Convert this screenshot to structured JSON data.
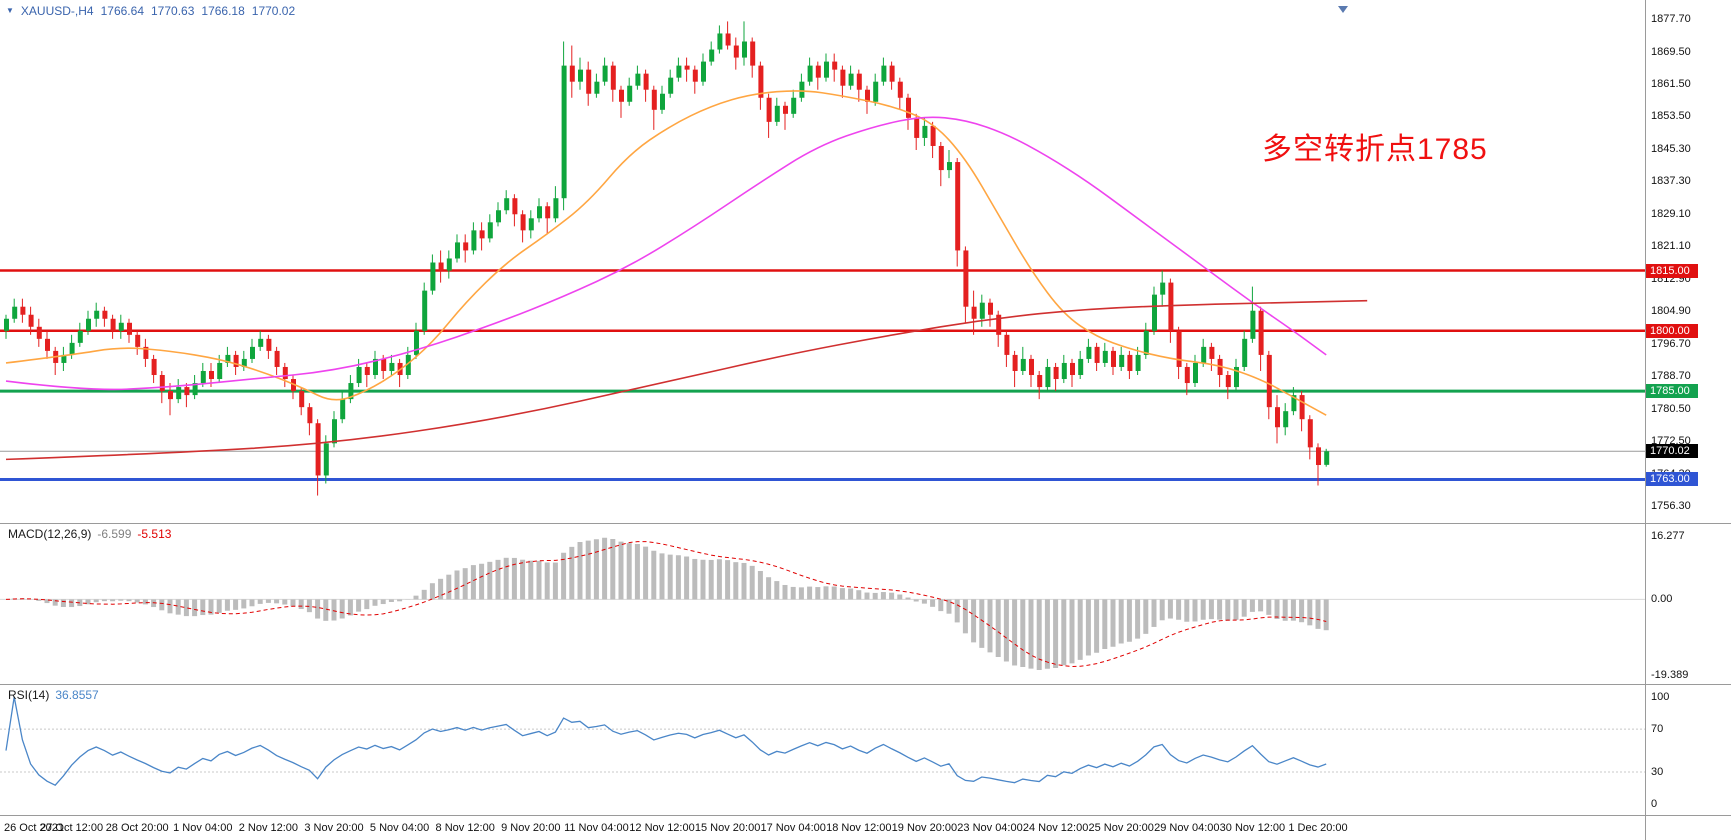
{
  "symbol_bar": {
    "dropdown_icon": "▼",
    "symbol": "XAUUSD-,H4",
    "open": "1766.64",
    "high": "1770.63",
    "low": "1766.18",
    "close": "1770.02",
    "color": "#3a64ad"
  },
  "annotation": {
    "text": "多空转折点1785",
    "color": "#f01010"
  },
  "colors": {
    "up": "#0fa53c",
    "down": "#e42020",
    "ma_fast": "#ffa642",
    "ma_mid": "#ee44ee",
    "ma_slow": "#d03030",
    "macd_hist": "#bcbcbc",
    "macd_signal": "#e00000",
    "rsi_line": "#4a86c8",
    "level_dotted": "#c8c8c8",
    "separator": "#9a9a9a",
    "bid_line": "#9a9a9a",
    "bid_badge_bg": "#000000"
  },
  "price_axis": {
    "labels": [
      "1877.70",
      "1869.50",
      "1861.50",
      "1853.50",
      "1845.30",
      "1837.30",
      "1829.10",
      "1821.10",
      "1812.90",
      "1804.90",
      "1796.70",
      "1788.70",
      "1780.50",
      "1772.50",
      "1764.30",
      "1756.30"
    ],
    "values": [
      1877.7,
      1869.5,
      1861.5,
      1853.5,
      1845.3,
      1837.3,
      1829.1,
      1821.1,
      1812.9,
      1804.9,
      1796.7,
      1788.7,
      1780.5,
      1772.5,
      1764.3,
      1756.3
    ]
  },
  "levels": [
    {
      "name": "resistance-1815",
      "price": 1815.0,
      "label": "1815.00",
      "color": "#e01010",
      "thickness": 2.5
    },
    {
      "name": "resistance-1800",
      "price": 1800.0,
      "label": "1800.00",
      "color": "#e01010",
      "thickness": 2.5
    },
    {
      "name": "pivot-1785",
      "price": 1785.0,
      "label": "1785.00",
      "color": "#13a24f",
      "thickness": 3
    },
    {
      "name": "support-1763",
      "price": 1763.0,
      "label": "1763.00",
      "color": "#2f55d4",
      "thickness": 3
    }
  ],
  "bid": {
    "price": 1770.02,
    "label": "1770.02"
  },
  "chart_data": {
    "type": "candlestick",
    "symbol": "XAUUSD-",
    "timeframe": "H4",
    "price_range": {
      "top": 1877.7,
      "bottom": 1756.3
    },
    "time_labels": [
      "26 Oct 2021",
      "27 Oct 12:00",
      "28 Oct 20:00",
      "1 Nov 04:00",
      "2 Nov 12:00",
      "3 Nov 20:00",
      "5 Nov 04:00",
      "8 Nov 12:00",
      "9 Nov 20:00",
      "11 Nov 04:00",
      "12 Nov 12:00",
      "15 Nov 20:00",
      "17 Nov 04:00",
      "18 Nov 12:00",
      "19 Nov 20:00",
      "23 Nov 04:00",
      "24 Nov 12:00",
      "25 Nov 20:00",
      "29 Nov 04:00",
      "30 Nov 12:00",
      "1 Dec 20:00"
    ],
    "candles_ohlc": [
      [
        1800,
        1804,
        1798,
        1803
      ],
      [
        1803,
        1808,
        1802,
        1806
      ],
      [
        1806,
        1808,
        1802,
        1804
      ],
      [
        1804,
        1806,
        1799,
        1801
      ],
      [
        1801,
        1803,
        1796,
        1798
      ],
      [
        1798,
        1800,
        1793,
        1795
      ],
      [
        1795,
        1796,
        1789,
        1792
      ],
      [
        1792,
        1796,
        1790,
        1794
      ],
      [
        1794,
        1799,
        1793,
        1797
      ],
      [
        1797,
        1802,
        1796,
        1800
      ],
      [
        1800,
        1805,
        1799,
        1803
      ],
      [
        1803,
        1807,
        1801,
        1805
      ],
      [
        1805,
        1806,
        1801,
        1803
      ],
      [
        1803,
        1804,
        1798,
        1800
      ],
      [
        1800,
        1804,
        1798,
        1802
      ],
      [
        1802,
        1803,
        1797,
        1799
      ],
      [
        1799,
        1800,
        1794,
        1796
      ],
      [
        1796,
        1798,
        1791,
        1793
      ],
      [
        1793,
        1794,
        1787,
        1789
      ],
      [
        1789,
        1790,
        1782,
        1785
      ],
      [
        1785,
        1787,
        1779,
        1783
      ],
      [
        1783,
        1788,
        1782,
        1786
      ],
      [
        1786,
        1787,
        1781,
        1784
      ],
      [
        1784,
        1789,
        1783,
        1787
      ],
      [
        1787,
        1792,
        1786,
        1790
      ],
      [
        1790,
        1792,
        1786,
        1788
      ],
      [
        1788,
        1794,
        1787,
        1792
      ],
      [
        1792,
        1796,
        1791,
        1794
      ],
      [
        1794,
        1795,
        1789,
        1791
      ],
      [
        1791,
        1795,
        1790,
        1793
      ],
      [
        1793,
        1798,
        1792,
        1796
      ],
      [
        1796,
        1800,
        1795,
        1798
      ],
      [
        1798,
        1799,
        1793,
        1795
      ],
      [
        1795,
        1796,
        1789,
        1791
      ],
      [
        1791,
        1792,
        1786,
        1788
      ],
      [
        1788,
        1789,
        1783,
        1785
      ],
      [
        1785,
        1786,
        1779,
        1781
      ],
      [
        1781,
        1782,
        1774,
        1777
      ],
      [
        1777,
        1778,
        1759,
        1764
      ],
      [
        1764,
        1774,
        1762,
        1772
      ],
      [
        1772,
        1780,
        1771,
        1778
      ],
      [
        1778,
        1785,
        1777,
        1783
      ],
      [
        1783,
        1789,
        1782,
        1787
      ],
      [
        1787,
        1793,
        1786,
        1791
      ],
      [
        1791,
        1792,
        1786,
        1789
      ],
      [
        1789,
        1795,
        1788,
        1793
      ],
      [
        1793,
        1794,
        1788,
        1790
      ],
      [
        1790,
        1794,
        1789,
        1792
      ],
      [
        1792,
        1793,
        1786,
        1789
      ],
      [
        1789,
        1796,
        1788,
        1794
      ],
      [
        1794,
        1802,
        1793,
        1800
      ],
      [
        1800,
        1812,
        1799,
        1810
      ],
      [
        1810,
        1819,
        1809,
        1817
      ],
      [
        1817,
        1820,
        1812,
        1815
      ],
      [
        1815,
        1820,
        1813,
        1818
      ],
      [
        1818,
        1824,
        1817,
        1822
      ],
      [
        1822,
        1824,
        1817,
        1820
      ],
      [
        1820,
        1827,
        1819,
        1825
      ],
      [
        1825,
        1827,
        1820,
        1823
      ],
      [
        1823,
        1829,
        1822,
        1827
      ],
      [
        1827,
        1832,
        1826,
        1830
      ],
      [
        1830,
        1835,
        1829,
        1833
      ],
      [
        1833,
        1834,
        1826,
        1829
      ],
      [
        1829,
        1830,
        1822,
        1825
      ],
      [
        1825,
        1830,
        1823,
        1828
      ],
      [
        1828,
        1833,
        1827,
        1831
      ],
      [
        1831,
        1832,
        1824,
        1828
      ],
      [
        1828,
        1836,
        1827,
        1833
      ],
      [
        1833,
        1872,
        1830,
        1866
      ],
      [
        1866,
        1871,
        1858,
        1862
      ],
      [
        1862,
        1868,
        1860,
        1865
      ],
      [
        1865,
        1867,
        1856,
        1859
      ],
      [
        1859,
        1864,
        1858,
        1862
      ],
      [
        1862,
        1868,
        1861,
        1866
      ],
      [
        1866,
        1867,
        1857,
        1860
      ],
      [
        1860,
        1861,
        1853,
        1857
      ],
      [
        1857,
        1863,
        1856,
        1861
      ],
      [
        1861,
        1866,
        1860,
        1864
      ],
      [
        1864,
        1865,
        1857,
        1860
      ],
      [
        1860,
        1861,
        1850,
        1855
      ],
      [
        1855,
        1861,
        1854,
        1859
      ],
      [
        1859,
        1865,
        1858,
        1863
      ],
      [
        1863,
        1868,
        1862,
        1866
      ],
      [
        1866,
        1868,
        1862,
        1865
      ],
      [
        1865,
        1866,
        1859,
        1862
      ],
      [
        1862,
        1869,
        1861,
        1867
      ],
      [
        1867,
        1872,
        1866,
        1870
      ],
      [
        1870,
        1876,
        1869,
        1874
      ],
      [
        1874,
        1877,
        1870,
        1871
      ],
      [
        1871,
        1873,
        1865,
        1868
      ],
      [
        1868,
        1877,
        1866,
        1872
      ],
      [
        1872,
        1873,
        1863,
        1866
      ],
      [
        1866,
        1867,
        1855,
        1858
      ],
      [
        1858,
        1859,
        1848,
        1852
      ],
      [
        1852,
        1858,
        1851,
        1856
      ],
      [
        1856,
        1857,
        1850,
        1854
      ],
      [
        1854,
        1860,
        1853,
        1858
      ],
      [
        1858,
        1864,
        1857,
        1862
      ],
      [
        1862,
        1868,
        1861,
        1866
      ],
      [
        1866,
        1867,
        1860,
        1863
      ],
      [
        1863,
        1869,
        1862,
        1867
      ],
      [
        1867,
        1869,
        1862,
        1865
      ],
      [
        1865,
        1866,
        1858,
        1861
      ],
      [
        1861,
        1866,
        1860,
        1864
      ],
      [
        1864,
        1865,
        1857,
        1860
      ],
      [
        1860,
        1861,
        1854,
        1857
      ],
      [
        1857,
        1864,
        1856,
        1862
      ],
      [
        1862,
        1868,
        1861,
        1866
      ],
      [
        1866,
        1867,
        1860,
        1862
      ],
      [
        1862,
        1863,
        1855,
        1858
      ],
      [
        1858,
        1859,
        1850,
        1853
      ],
      [
        1853,
        1854,
        1845,
        1848
      ],
      [
        1848,
        1853,
        1846,
        1851
      ],
      [
        1851,
        1852,
        1843,
        1846
      ],
      [
        1846,
        1847,
        1836,
        1840
      ],
      [
        1840,
        1845,
        1838,
        1842
      ],
      [
        1842,
        1843,
        1816,
        1820
      ],
      [
        1820,
        1821,
        1802,
        1806
      ],
      [
        1806,
        1810,
        1799,
        1803
      ],
      [
        1803,
        1809,
        1801,
        1807
      ],
      [
        1807,
        1808,
        1801,
        1804
      ],
      [
        1804,
        1805,
        1796,
        1799
      ],
      [
        1799,
        1800,
        1791,
        1794
      ],
      [
        1794,
        1795,
        1786,
        1790
      ],
      [
        1790,
        1796,
        1789,
        1793
      ],
      [
        1793,
        1794,
        1786,
        1789
      ],
      [
        1789,
        1790,
        1783,
        1786
      ],
      [
        1786,
        1793,
        1785,
        1791
      ],
      [
        1791,
        1792,
        1785,
        1788
      ],
      [
        1788,
        1794,
        1787,
        1792
      ],
      [
        1792,
        1793,
        1786,
        1789
      ],
      [
        1789,
        1795,
        1788,
        1793
      ],
      [
        1793,
        1798,
        1792,
        1796
      ],
      [
        1796,
        1797,
        1790,
        1792
      ],
      [
        1792,
        1797,
        1791,
        1795
      ],
      [
        1795,
        1796,
        1789,
        1791
      ],
      [
        1791,
        1796,
        1790,
        1794
      ],
      [
        1794,
        1795,
        1788,
        1790
      ],
      [
        1790,
        1796,
        1789,
        1794
      ],
      [
        1794,
        1802,
        1793,
        1800
      ],
      [
        1800,
        1811,
        1799,
        1809
      ],
      [
        1809,
        1815,
        1806,
        1812
      ],
      [
        1812,
        1813,
        1797,
        1800
      ],
      [
        1800,
        1801,
        1788,
        1791
      ],
      [
        1791,
        1792,
        1784,
        1787
      ],
      [
        1787,
        1794,
        1786,
        1792
      ],
      [
        1792,
        1798,
        1791,
        1796
      ],
      [
        1796,
        1797,
        1790,
        1793
      ],
      [
        1793,
        1794,
        1786,
        1789
      ],
      [
        1789,
        1790,
        1783,
        1786
      ],
      [
        1786,
        1793,
        1785,
        1791
      ],
      [
        1791,
        1800,
        1790,
        1798
      ],
      [
        1798,
        1811,
        1797,
        1805
      ],
      [
        1805,
        1806,
        1790,
        1794
      ],
      [
        1794,
        1795,
        1778,
        1781
      ],
      [
        1781,
        1784,
        1772,
        1776
      ],
      [
        1776,
        1782,
        1774,
        1780
      ],
      [
        1780,
        1786,
        1779,
        1784
      ],
      [
        1784,
        1785,
        1775,
        1778
      ],
      [
        1778,
        1779,
        1768,
        1771
      ],
      [
        1771,
        1772,
        1761.5,
        1766.6
      ],
      [
        1766.64,
        1770.63,
        1766.18,
        1770.02
      ]
    ],
    "moving_averages": [
      {
        "name": "ma-fast-orange",
        "color_key": "ma_fast",
        "points": [
          [
            0,
            1792
          ],
          [
            8,
            1794
          ],
          [
            14,
            1796
          ],
          [
            20,
            1795
          ],
          [
            26,
            1793
          ],
          [
            31,
            1790
          ],
          [
            36,
            1786
          ],
          [
            40,
            1782
          ],
          [
            44,
            1785
          ],
          [
            48,
            1790
          ],
          [
            52,
            1797
          ],
          [
            56,
            1807
          ],
          [
            61,
            1817
          ],
          [
            66,
            1824
          ],
          [
            71,
            1832
          ],
          [
            76,
            1844
          ],
          [
            81,
            1851
          ],
          [
            86,
            1856
          ],
          [
            91,
            1859
          ],
          [
            97,
            1860
          ],
          [
            102,
            1858.5
          ],
          [
            108,
            1856
          ],
          [
            113,
            1852
          ],
          [
            117,
            1843
          ],
          [
            121,
            1829
          ],
          [
            125,
            1815
          ],
          [
            129,
            1804
          ],
          [
            133,
            1798.5
          ],
          [
            137,
            1795.5
          ],
          [
            142,
            1793
          ],
          [
            148,
            1791.5
          ],
          [
            153,
            1788
          ],
          [
            157,
            1783.5
          ],
          [
            161,
            1779
          ]
        ]
      },
      {
        "name": "ma-mid-magenta",
        "color_key": "ma_mid",
        "points": [
          [
            0,
            1787.5
          ],
          [
            10,
            1785
          ],
          [
            20,
            1786
          ],
          [
            30,
            1788
          ],
          [
            40,
            1790
          ],
          [
            50,
            1795
          ],
          [
            60,
            1802
          ],
          [
            68,
            1808.5
          ],
          [
            76,
            1816
          ],
          [
            84,
            1826
          ],
          [
            92,
            1837
          ],
          [
            99,
            1846
          ],
          [
            106,
            1851
          ],
          [
            112,
            1853.5
          ],
          [
            117,
            1852.5
          ],
          [
            122,
            1849
          ],
          [
            127,
            1843.5
          ],
          [
            132,
            1837
          ],
          [
            137,
            1829.5
          ],
          [
            142,
            1822
          ],
          [
            147,
            1814.5
          ],
          [
            152,
            1807
          ],
          [
            157,
            1800
          ],
          [
            161,
            1794
          ]
        ]
      },
      {
        "name": "ma-slow-red",
        "color_key": "ma_slow",
        "points": [
          [
            0,
            1768
          ],
          [
            20,
            1769.5
          ],
          [
            40,
            1772
          ],
          [
            60,
            1778
          ],
          [
            80,
            1787
          ],
          [
            95,
            1794
          ],
          [
            108,
            1799
          ],
          [
            120,
            1803
          ],
          [
            132,
            1805.5
          ],
          [
            145,
            1806.5
          ],
          [
            155,
            1807
          ],
          [
            166,
            1807.5
          ]
        ]
      }
    ],
    "macd": {
      "label": "MACD(12,26,9)",
      "fast": 12,
      "slow": 26,
      "signal": 9,
      "value_main": "-6.599",
      "value_signal": "-5.513",
      "axis": [
        {
          "label": "16.277",
          "value": 16.277
        },
        {
          "label": "0.00",
          "value": 0
        },
        {
          "label": "-19.389",
          "value": -19.389
        }
      ]
    },
    "rsi": {
      "label": "RSI(14)",
      "period": 14,
      "value": "36.8557",
      "levels": [
        70,
        30
      ],
      "axis": [
        {
          "label": "100",
          "value": 100
        },
        {
          "label": "70",
          "value": 70
        },
        {
          "label": "30",
          "value": 30
        },
        {
          "label": "0",
          "value": 0
        }
      ]
    }
  }
}
